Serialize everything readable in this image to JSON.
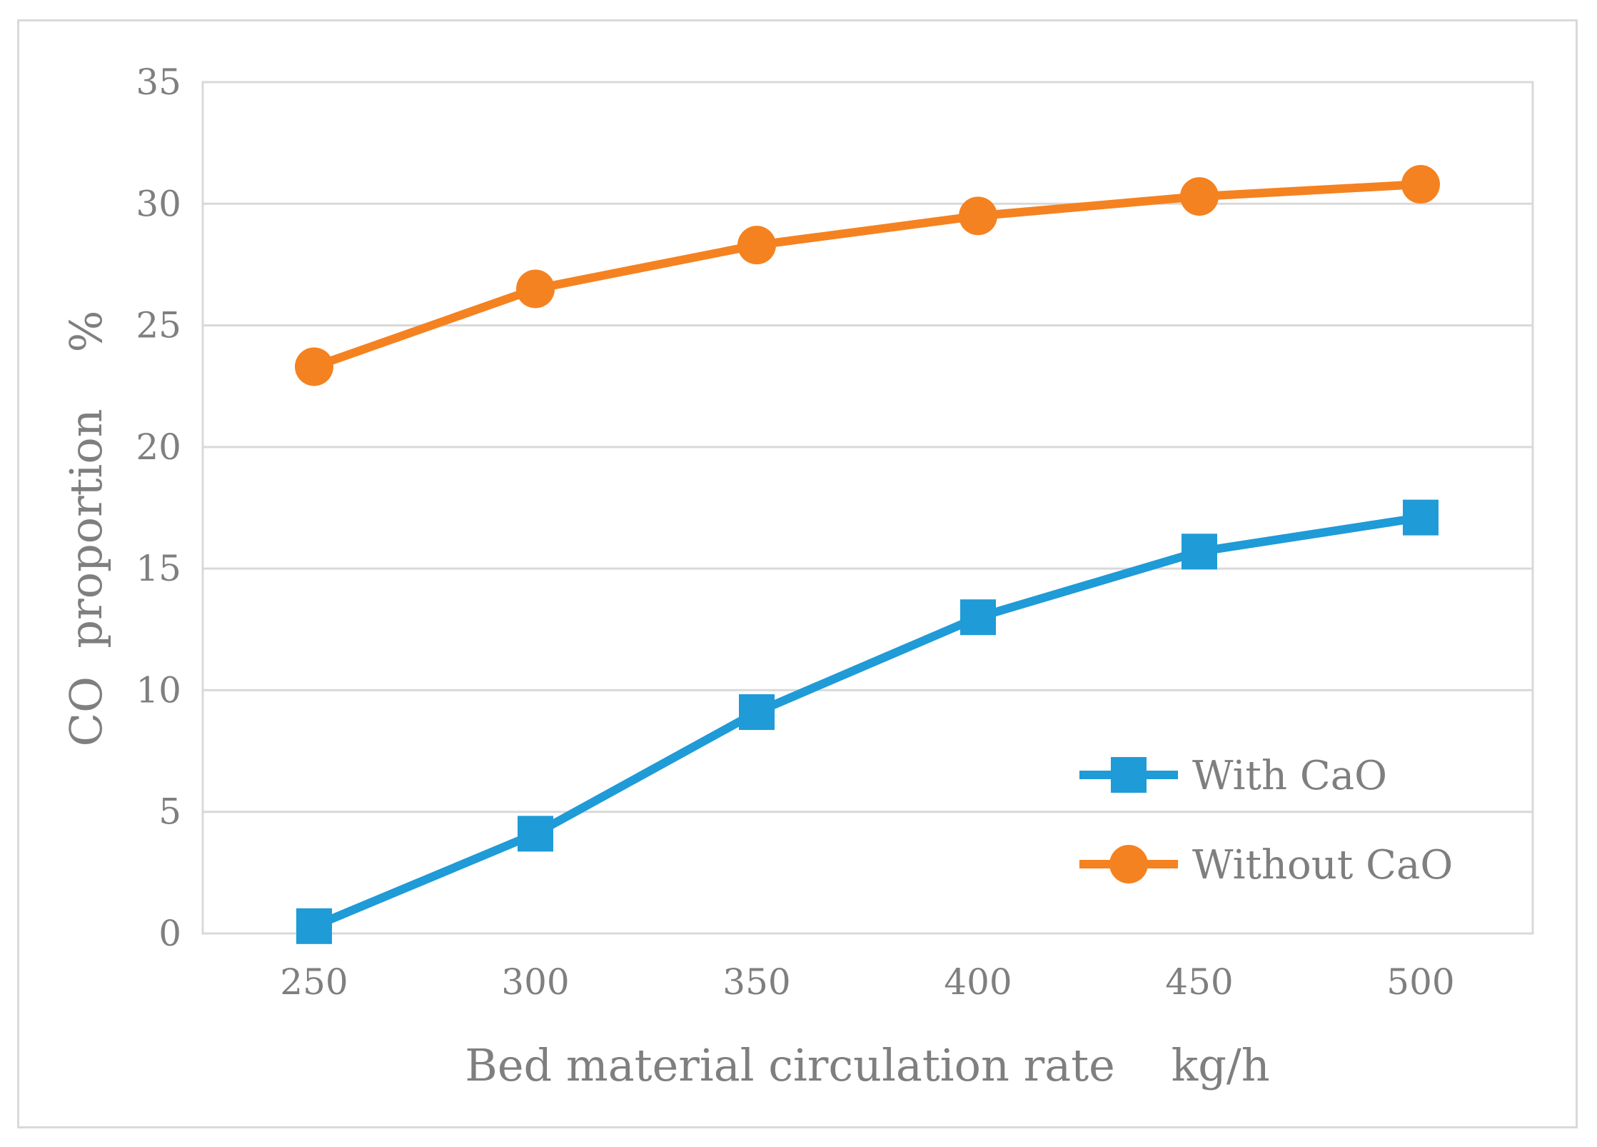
{
  "chart_data": {
    "type": "line",
    "x": [
      250,
      300,
      350,
      400,
      450,
      500
    ],
    "xlabel": "Bed material circulation rate    kg/h",
    "ylabel": "CO  proportion    %",
    "ylim": [
      0,
      35
    ],
    "yticks": [
      0,
      5,
      10,
      15,
      20,
      25,
      30,
      35
    ],
    "grid": "horizontal",
    "legend_position": "lower-right",
    "series": [
      {
        "name": "With CaO",
        "color": "#1f9bd7",
        "marker": "square",
        "values": [
          0.3,
          4.1,
          9.1,
          13.0,
          15.7,
          17.1
        ]
      },
      {
        "name": "Without CaO",
        "color": "#f58220",
        "marker": "circle",
        "values": [
          23.3,
          26.5,
          28.3,
          29.5,
          30.3,
          30.8
        ]
      }
    ]
  }
}
